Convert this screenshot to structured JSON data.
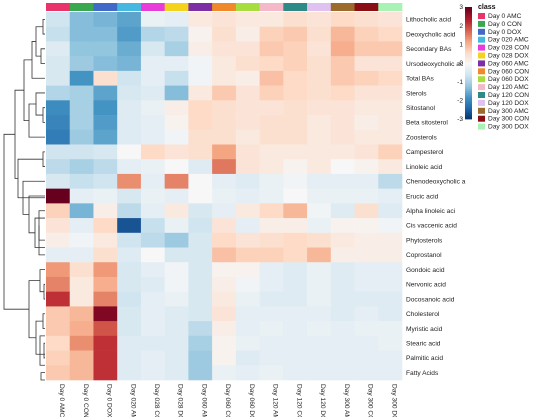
{
  "chart_data": {
    "type": "heatmap",
    "legend_title": "class",
    "columns": [
      {
        "label": "Day 0 AMC",
        "class": "Day 0 AMC"
      },
      {
        "label": "Day 0 CON",
        "class": "Day 0 CON"
      },
      {
        "label": "Day 0 DOX",
        "class": "Day 0 DOX"
      },
      {
        "label": "Day 020 AMC",
        "class": "Day 020 AMC"
      },
      {
        "label": "Day 028 CON",
        "class": "Day 028 CON"
      },
      {
        "label": "Day 028 DOX",
        "class": "Day 028 DOX"
      },
      {
        "label": "Day 060 AMC",
        "class": "Day 060 AMC"
      },
      {
        "label": "Day 060 CON",
        "class": "Day 060 CON"
      },
      {
        "label": "Day 060 DOX",
        "class": "Day 060 DOX"
      },
      {
        "label": "Day 120 AMC",
        "class": "Day 120 AMC"
      },
      {
        "label": "Day 120 CON",
        "class": "Day 120 CON"
      },
      {
        "label": "Day 120 DOX",
        "class": "Day 120 DOX"
      },
      {
        "label": "Day 300 AMC",
        "class": "Day 300 AMC"
      },
      {
        "label": "Day 300 CON",
        "class": "Day 300 CON"
      },
      {
        "label": "Day 300 DOX",
        "class": "Day 300 DOX"
      }
    ],
    "rows": [
      "Lithocholic acid",
      "Deoxycholic acid",
      "Secondary BAs",
      "Ursodeoxycholic ac",
      "Total BAs",
      "Sterols",
      "Sitostanol",
      "Beta sitosterol",
      "Zoosterols",
      "Campesterol",
      "Linoleic acid",
      "Chenodeoxycholic a",
      "Erucic acid",
      "Alpha linoleic aci",
      "Cis vaccenic acid",
      "Phytosterols",
      "Coprostanol",
      "Gondoic acid",
      "Nervonic acid",
      "Docosanoic acid",
      "Cholesterol",
      "Myristic acid",
      "Stearic acid",
      "Palmitic acid",
      "Fatty Acids"
    ],
    "values": [
      [
        -0.6,
        -1.3,
        -1.4,
        -1.6,
        -0.2,
        -0.3,
        0.3,
        0.4,
        0.3,
        0.3,
        0.5,
        0.4,
        0.6,
        0.5,
        0.4
      ],
      [
        -0.7,
        -1.3,
        -1.3,
        -1.7,
        -0.9,
        -0.8,
        0.1,
        0.5,
        0.2,
        0.7,
        0.8,
        0.5,
        1.0,
        0.7,
        0.6
      ],
      [
        -0.4,
        -1.2,
        -1.2,
        -1.5,
        -0.5,
        -1.0,
        0.2,
        0.4,
        0.4,
        0.8,
        0.7,
        0.4,
        1.1,
        0.8,
        0.8
      ],
      [
        -0.5,
        -1.1,
        -1.3,
        -1.4,
        -0.3,
        -0.3,
        -0.1,
        0.3,
        0.5,
        0.6,
        0.7,
        0.5,
        0.8,
        0.4,
        0.4
      ],
      [
        -0.5,
        -1.8,
        0.5,
        -0.6,
        -0.3,
        -0.7,
        -0.1,
        0.3,
        0.2,
        0.9,
        0.6,
        0.5,
        0.8,
        0.7,
        0.6
      ],
      [
        -0.9,
        -1.0,
        -1.6,
        -0.5,
        -0.4,
        -1.3,
        0.3,
        0.8,
        0.4,
        0.7,
        0.6,
        0.5,
        0.6,
        0.4,
        0.4
      ],
      [
        -1.9,
        -1.0,
        -1.8,
        -0.4,
        -0.2,
        0.2,
        0.6,
        0.5,
        0.4,
        0.4,
        0.5,
        0.4,
        0.4,
        0.3,
        0.3
      ],
      [
        -2.0,
        -1.0,
        -1.7,
        -0.4,
        -0.3,
        0.1,
        0.6,
        0.5,
        0.4,
        0.5,
        0.5,
        0.3,
        0.4,
        0.2,
        0.3
      ],
      [
        -2.1,
        -1.1,
        -1.6,
        -0.4,
        -0.3,
        -0.1,
        0.5,
        0.5,
        0.3,
        0.5,
        0.5,
        0.3,
        0.4,
        0.3,
        0.3
      ],
      [
        -0.6,
        -0.6,
        -0.5,
        0.0,
        0.6,
        0.4,
        0.5,
        1.2,
        0.4,
        0.3,
        0.3,
        0.3,
        0.3,
        0.4,
        0.7
      ],
      [
        -0.8,
        -1.0,
        -0.8,
        -0.3,
        -0.2,
        0.0,
        -0.4,
        1.6,
        0.4,
        0.3,
        0.1,
        0.3,
        0.0,
        0.1,
        0.3
      ],
      [
        -0.5,
        -0.7,
        -0.6,
        1.4,
        -0.3,
        1.5,
        0.0,
        -0.3,
        -0.4,
        -0.2,
        -0.1,
        -0.3,
        -0.3,
        -0.3,
        -0.8
      ],
      [
        3.0,
        -0.3,
        -0.2,
        -0.5,
        -0.2,
        -0.3,
        0.0,
        -0.2,
        -0.3,
        -0.2,
        0.0,
        -0.2,
        -0.2,
        -0.2,
        -0.3
      ],
      [
        0.7,
        -1.4,
        0.2,
        -0.8,
        -0.3,
        0.3,
        -0.5,
        -0.3,
        0.3,
        0.6,
        1.0,
        -0.1,
        -0.4,
        0.5,
        -0.4
      ],
      [
        0.4,
        -0.3,
        0.6,
        -2.6,
        -0.7,
        -0.2,
        -0.6,
        0.4,
        -0.3,
        0.2,
        0.2,
        -0.2,
        0.1,
        0.1,
        -0.1
      ],
      [
        0.2,
        -0.1,
        0.3,
        -0.6,
        -0.8,
        -1.1,
        -0.5,
        0.6,
        0.4,
        0.5,
        0.6,
        0.5,
        0.3,
        0.2,
        0.2
      ],
      [
        -0.3,
        -0.3,
        0.5,
        -0.4,
        0.0,
        -0.5,
        -0.5,
        0.9,
        0.7,
        0.7,
        0.6,
        1.0,
        0.2,
        0.2,
        0.2
      ],
      [
        1.3,
        0.5,
        1.3,
        -0.5,
        -0.3,
        -0.1,
        -0.5,
        0.1,
        0.1,
        -0.3,
        -0.4,
        -0.2,
        -0.4,
        -0.3,
        -0.3
      ],
      [
        1.5,
        0.3,
        1.1,
        -0.5,
        -0.4,
        -0.1,
        -0.5,
        0.2,
        -0.1,
        -0.3,
        -0.4,
        -0.2,
        -0.4,
        -0.3,
        -0.3
      ],
      [
        2.2,
        0.3,
        1.5,
        -0.6,
        -0.3,
        -0.2,
        -0.5,
        0.3,
        -0.2,
        -0.4,
        -0.4,
        -0.2,
        -0.4,
        -0.4,
        -0.4
      ],
      [
        0.8,
        1.0,
        2.8,
        -0.5,
        -0.3,
        -0.4,
        -0.5,
        0.4,
        -0.3,
        -0.3,
        -0.3,
        -0.3,
        -0.4,
        -0.3,
        -0.4
      ],
      [
        0.8,
        1.1,
        1.9,
        -0.5,
        -0.3,
        -0.4,
        -0.8,
        0.2,
        -0.3,
        -0.2,
        -0.3,
        -0.2,
        -0.3,
        -0.2,
        -0.2
      ],
      [
        0.6,
        1.4,
        2.2,
        -0.4,
        -0.4,
        -0.4,
        -1.0,
        0.1,
        -0.2,
        -0.3,
        -0.3,
        -0.3,
        -0.3,
        -0.3,
        -0.2
      ],
      [
        0.7,
        1.0,
        2.2,
        -0.4,
        -0.3,
        -0.4,
        -1.1,
        0.1,
        -0.4,
        -0.3,
        -0.3,
        -0.3,
        -0.3,
        -0.3,
        -0.3
      ],
      [
        0.8,
        1.0,
        2.2,
        -0.4,
        -0.3,
        -0.4,
        -1.1,
        -0.2,
        -0.3,
        -0.2,
        -0.3,
        -0.3,
        -0.3,
        -0.3,
        -0.3
      ]
    ],
    "colorbar": {
      "min": -3,
      "max": 3,
      "ticks": [
        3,
        2,
        1,
        0,
        -1,
        -2,
        -3
      ]
    },
    "classes": [
      {
        "name": "Day 0 AMC",
        "color": "#e8336b"
      },
      {
        "name": "Day 0 CON",
        "color": "#3aa84f"
      },
      {
        "name": "Day 0 DOX",
        "color": "#4169c8"
      },
      {
        "name": "Day 020 AMC",
        "color": "#45b8e0"
      },
      {
        "name": "Day 028 CON",
        "color": "#e93bd9"
      },
      {
        "name": "Day 028 DOX",
        "color": "#f3d31c"
      },
      {
        "name": "Day 060 AMC",
        "color": "#7e2ea4"
      },
      {
        "name": "Day 060 CON",
        "color": "#f0892a"
      },
      {
        "name": "Day 060 DOX",
        "color": "#a8dd40"
      },
      {
        "name": "Day 120 AMC",
        "color": "#f5b8c8"
      },
      {
        "name": "Day 120 CON",
        "color": "#2e8a86"
      },
      {
        "name": "Day 120 DOX",
        "color": "#dfc2ef"
      },
      {
        "name": "Day 300 AMC",
        "color": "#9c6a2a"
      },
      {
        "name": "Day 300 CON",
        "color": "#8a0f14"
      },
      {
        "name": "Day 300 DOX",
        "color": "#a7f2b4"
      }
    ],
    "colormap": [
      "#053061",
      "#2166ac",
      "#4393c3",
      "#92c5de",
      "#d1e5f0",
      "#f7f7f7",
      "#fddbc7",
      "#f4a582",
      "#d6604d",
      "#b2182b",
      "#67001f"
    ]
  }
}
